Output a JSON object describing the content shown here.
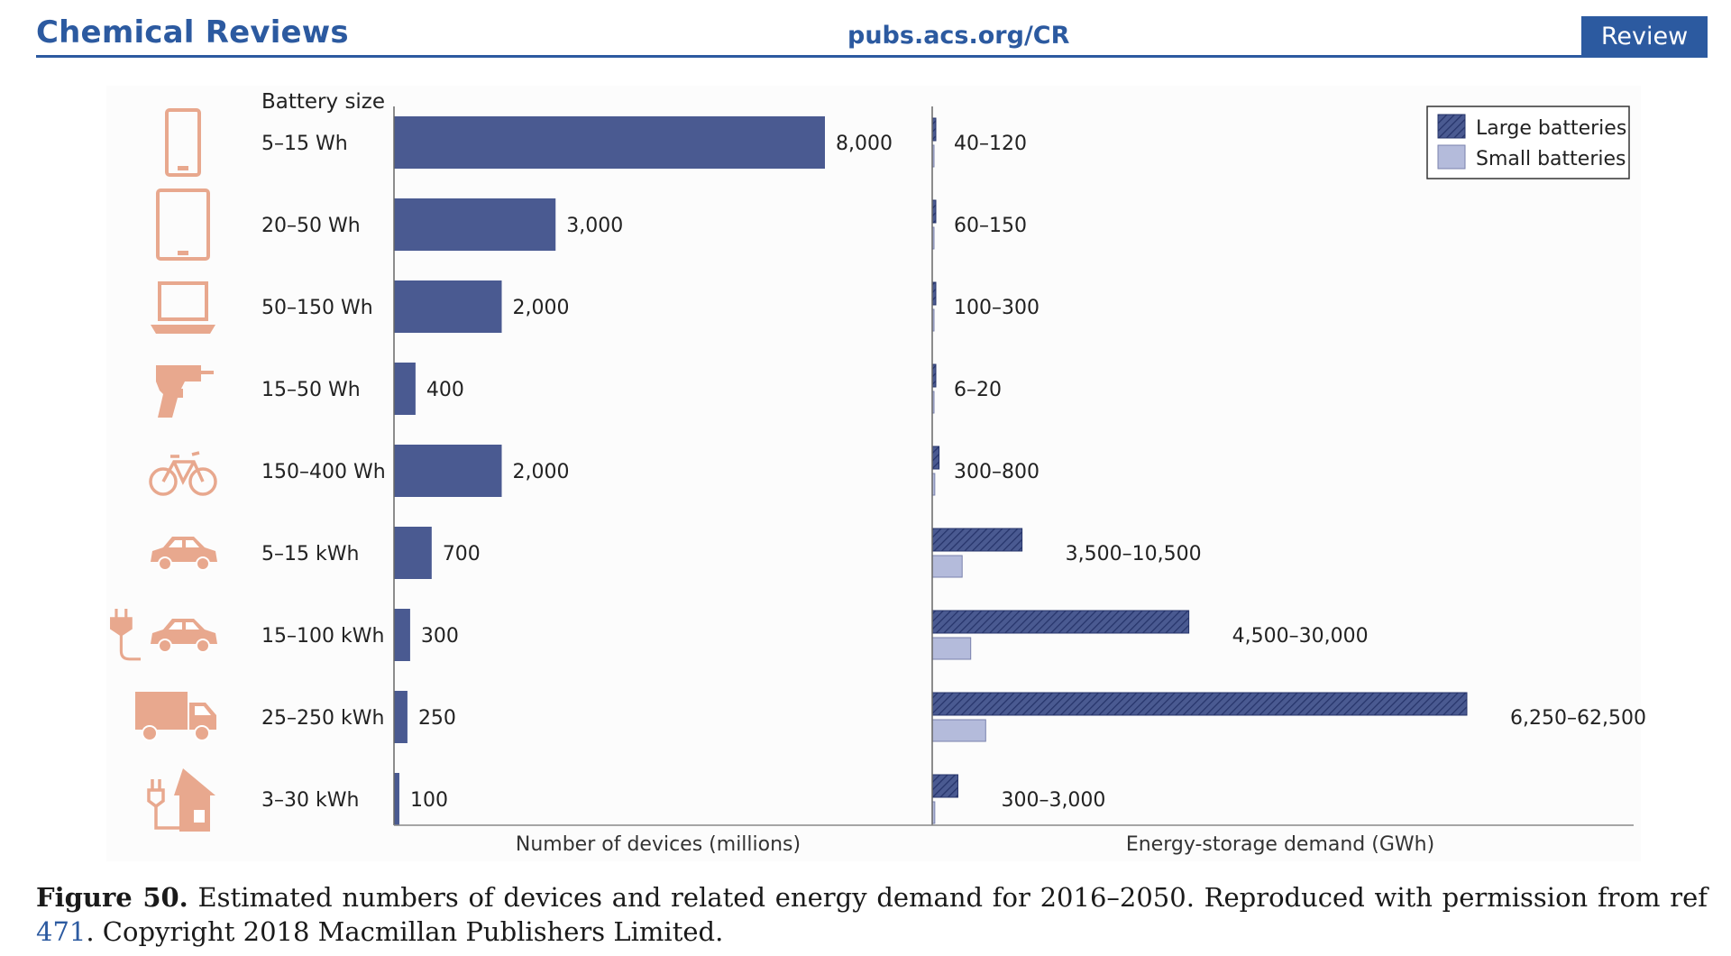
{
  "header": {
    "journal": "Chemical Reviews",
    "site": "pubs.acs.org/CR",
    "tag": "Review"
  },
  "colors": {
    "brand": "#2c5aa0",
    "bar": "#4a5a91",
    "small": "#b4bbdb",
    "icon": "#e8a88e"
  },
  "caption": {
    "lead": "Figure 50.",
    "text1": " Estimated numbers of devices and related energy demand for 2016–2050. Reproduced with permission from ref ",
    "ref": "471",
    "text2": ". Copyright 2018 Macmillan Publishers Limited."
  },
  "chart_data": {
    "type": "bar",
    "battery_size_header": "Battery size",
    "rows": [
      {
        "icon": "smartphone-icon",
        "size": "5–15 Wh",
        "devices": 8000,
        "devices_label": "8,000",
        "demand_label": "40–120",
        "large": 120,
        "small": 40
      },
      {
        "icon": "tablet-icon",
        "size": "20–50 Wh",
        "devices": 3000,
        "devices_label": "3,000",
        "demand_label": "60–150",
        "large": 150,
        "small": 60
      },
      {
        "icon": "laptop-icon",
        "size": "50–150 Wh",
        "devices": 2000,
        "devices_label": "2,000",
        "demand_label": "100–300",
        "large": 300,
        "small": 100
      },
      {
        "icon": "power-drill-icon",
        "size": "15–50 Wh",
        "devices": 400,
        "devices_label": "400",
        "demand_label": "6–20",
        "large": 20,
        "small": 6
      },
      {
        "icon": "bicycle-icon",
        "size": "150–400 Wh",
        "devices": 2000,
        "devices_label": "2,000",
        "demand_label": "300–800",
        "large": 800,
        "small": 300
      },
      {
        "icon": "hybrid-car-icon",
        "size": "5–15 kWh",
        "devices": 700,
        "devices_label": "700",
        "demand_label": "3,500–10,500",
        "large": 10500,
        "small": 3500
      },
      {
        "icon": "electric-car-icon",
        "size": "15–100 kWh",
        "devices": 300,
        "devices_label": "300",
        "demand_label": "4,500–30,000",
        "large": 30000,
        "small": 4500
      },
      {
        "icon": "truck-icon",
        "size": "25–250 kWh",
        "devices": 250,
        "devices_label": "250",
        "demand_label": "6,250–62,500",
        "large": 62500,
        "small": 6250
      },
      {
        "icon": "home-storage-icon",
        "size": "3–30 kWh",
        "devices": 100,
        "devices_label": "100",
        "demand_label": "300–3,000",
        "large": 3000,
        "small": 300
      }
    ],
    "devices_axis": {
      "label": "Number of devices (millions)",
      "max": 8000
    },
    "demand_axis": {
      "label": "Energy-storage demand (GWh)",
      "max": 62500
    },
    "legend": {
      "position": "top-right",
      "large": "Large batteries",
      "small": "Small batteries"
    }
  }
}
